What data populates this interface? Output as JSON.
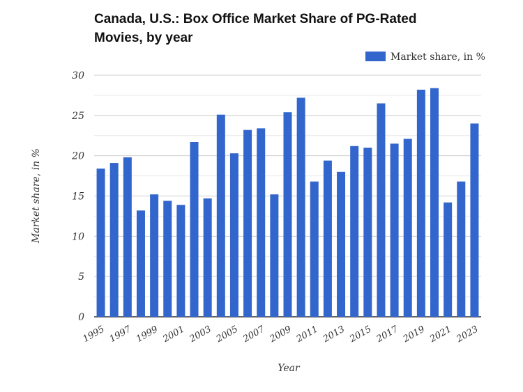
{
  "chart_data": {
    "type": "bar",
    "title": "Canada, U.S.: Box Office Market Share of PG-Rated Movies, by year",
    "xlabel": "Year",
    "ylabel": "Market share, in %",
    "legend": {
      "placement": "top-right",
      "entries": [
        "Market share, in %"
      ]
    },
    "ylim": [
      0,
      30
    ],
    "yticks": [
      0,
      5,
      10,
      15,
      20,
      25,
      30
    ],
    "grid": true,
    "bar_color": "#3366cc",
    "categories": [
      "1995",
      "1996",
      "1997",
      "1998",
      "1999",
      "2000",
      "2001",
      "2002",
      "2003",
      "2004",
      "2005",
      "2006",
      "2007",
      "2008",
      "2009",
      "2010",
      "2011",
      "2012",
      "2013",
      "2014",
      "2015",
      "2016",
      "2017",
      "2018",
      "2019",
      "2020",
      "2021",
      "2022",
      "2023"
    ],
    "xtick_labels": [
      "1995",
      "1997",
      "1999",
      "2001",
      "2003",
      "2005",
      "2007",
      "2009",
      "2011",
      "2013",
      "2015",
      "2017",
      "2019",
      "2021",
      "2023"
    ],
    "series": [
      {
        "name": "Market share, in %",
        "values": [
          18.4,
          19.1,
          19.8,
          13.2,
          15.2,
          14.4,
          13.9,
          21.7,
          14.7,
          25.1,
          20.3,
          23.2,
          23.4,
          15.2,
          25.4,
          27.2,
          16.8,
          19.4,
          18.0,
          21.2,
          21.0,
          26.5,
          21.5,
          22.1,
          28.2,
          28.4,
          14.2,
          16.8,
          24.0
        ]
      }
    ]
  }
}
